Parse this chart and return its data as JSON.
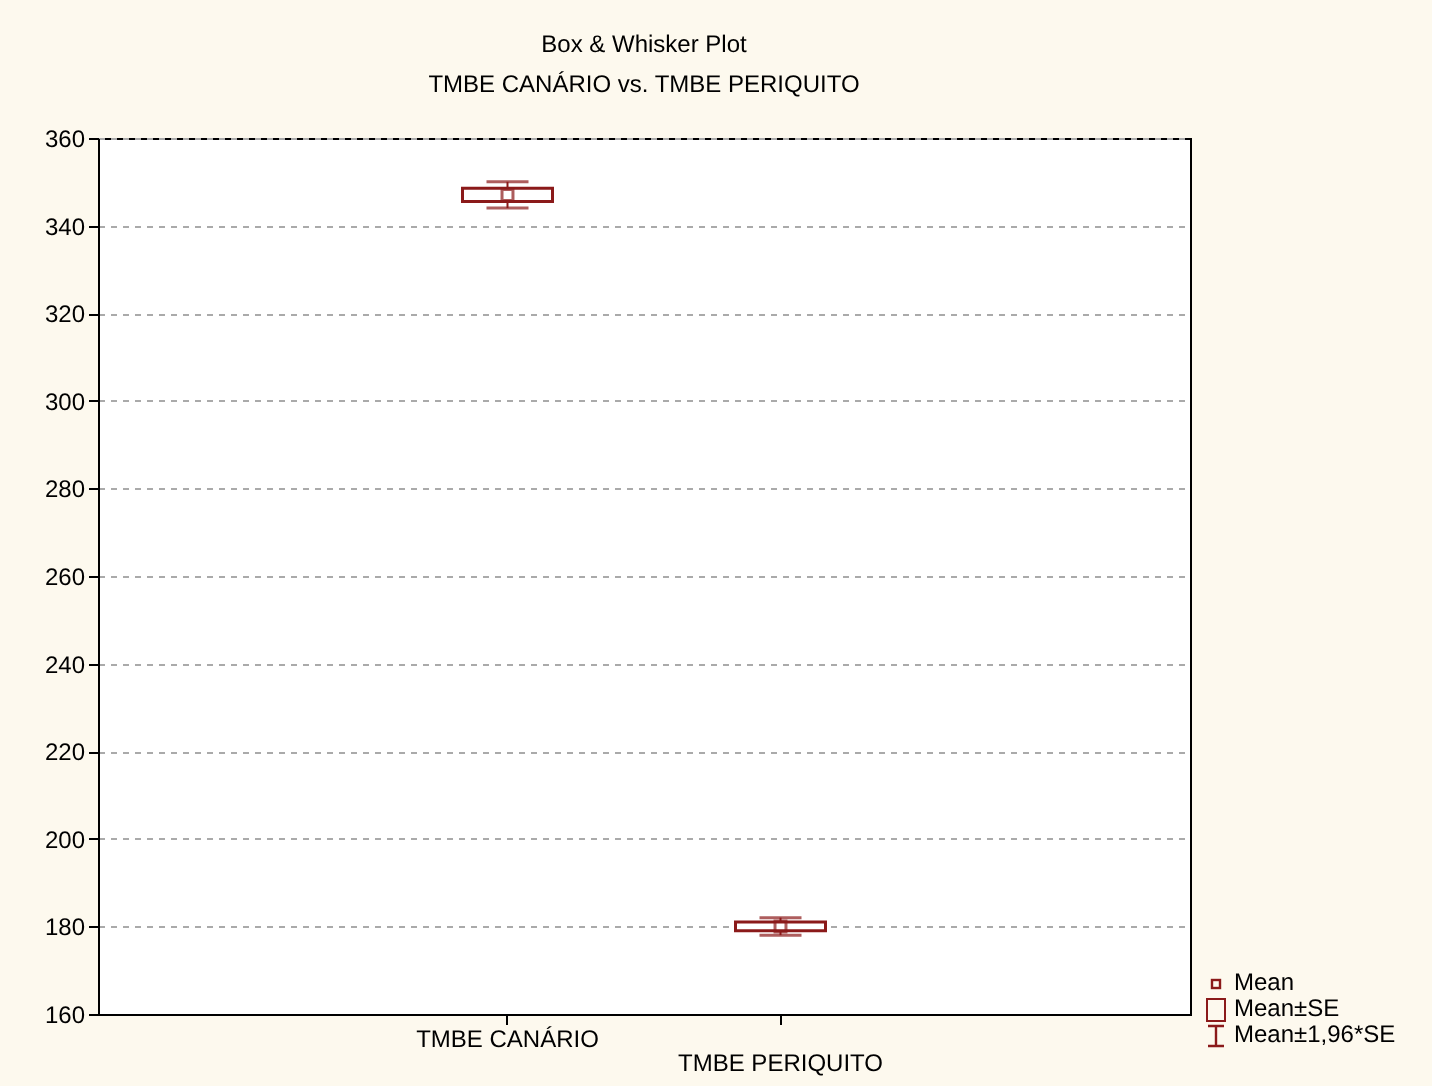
{
  "chart_data": {
    "type": "box",
    "title": "Box & Whisker Plot",
    "subtitle": "TMBE CANÁRIO vs. TMBE PERIQUITO",
    "categories": [
      "TMBE CANÁRIO",
      "TMBE PERIQUITO"
    ],
    "boxes": [
      {
        "low": 344,
        "q1": 345.5,
        "median": 347,
        "q3": 348.5,
        "high": 350
      },
      {
        "low": 178,
        "q1": 179,
        "median": 180,
        "q3": 181,
        "high": 182
      }
    ],
    "color": "#8b1a1a",
    "ylim": [
      160,
      360
    ],
    "yticks": [
      160,
      180,
      200,
      220,
      240,
      260,
      280,
      300,
      320,
      340,
      360
    ],
    "grid": "y",
    "annotations": [
      "Mean",
      "Mean±SE",
      "Mean±1,96*SE"
    ]
  }
}
